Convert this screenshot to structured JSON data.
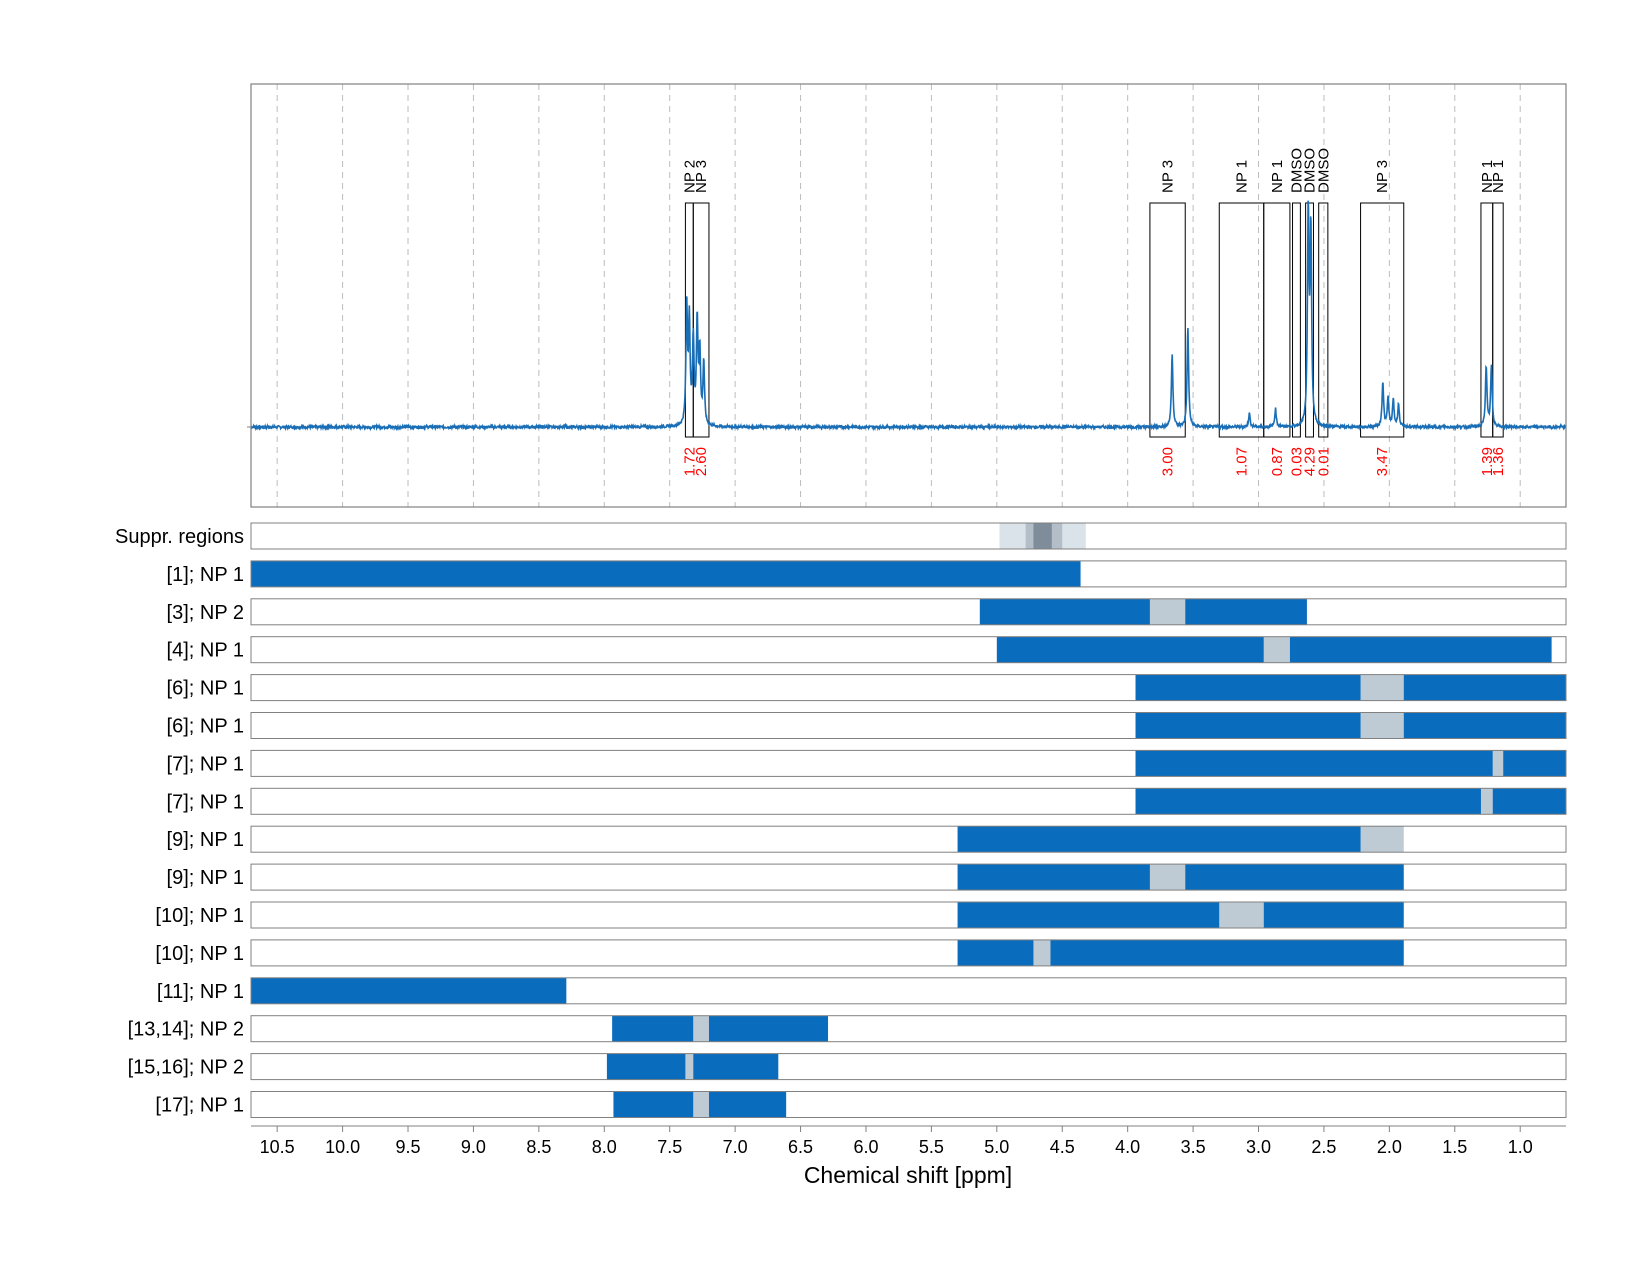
{
  "chart_data": {
    "type": "line",
    "title": "",
    "xlabel": "Chemical shift [ppm]",
    "ylabel": "",
    "xlim": [
      10.7,
      0.65
    ],
    "x_reversed": true,
    "grid": "vertical-dashed",
    "x_ticks": [
      10.5,
      10.0,
      9.5,
      9.0,
      8.5,
      8.0,
      7.5,
      7.0,
      6.5,
      6.0,
      5.5,
      5.0,
      4.5,
      4.0,
      3.5,
      3.0,
      2.5,
      2.0,
      1.5,
      1.0
    ],
    "x_tick_labels": [
      "10.5",
      "10.0",
      "9.5",
      "9.0",
      "8.5",
      "8.0",
      "7.5",
      "7.0",
      "6.5",
      "6.0",
      "5.5",
      "5.0",
      "4.5",
      "4.0",
      "3.5",
      "3.0",
      "2.5",
      "2.0",
      "1.5",
      "1.0"
    ],
    "spectrum": {
      "color": "#1a6eb5",
      "baseline": 0,
      "peaks": [
        {
          "x": 7.37,
          "y": 0.52
        },
        {
          "x": 7.35,
          "y": 0.45
        },
        {
          "x": 7.32,
          "y": 0.38
        },
        {
          "x": 7.29,
          "y": 0.46
        },
        {
          "x": 7.27,
          "y": 0.32
        },
        {
          "x": 7.24,
          "y": 0.28
        },
        {
          "x": 3.66,
          "y": 0.32
        },
        {
          "x": 3.54,
          "y": 0.44
        },
        {
          "x": 3.07,
          "y": 0.06
        },
        {
          "x": 2.87,
          "y": 0.08
        },
        {
          "x": 2.62,
          "y": 0.93
        },
        {
          "x": 2.6,
          "y": 0.85
        },
        {
          "x": 2.05,
          "y": 0.2
        },
        {
          "x": 2.01,
          "y": 0.13
        },
        {
          "x": 1.97,
          "y": 0.12
        },
        {
          "x": 1.93,
          "y": 0.1
        },
        {
          "x": 1.26,
          "y": 0.27
        },
        {
          "x": 1.22,
          "y": 0.27
        }
      ]
    },
    "integration_regions": [
      {
        "label": "NP 2",
        "x_from": 7.38,
        "x_to": 7.32,
        "integral": "1.72"
      },
      {
        "label": "NP 3",
        "x_from": 7.32,
        "x_to": 7.2,
        "integral": "2.60"
      },
      {
        "label": "NP 3",
        "x_from": 3.83,
        "x_to": 3.56,
        "integral": "3.00"
      },
      {
        "label": "NP 1",
        "x_from": 3.3,
        "x_to": 2.96,
        "integral": "1.07"
      },
      {
        "label": "NP 1",
        "x_from": 2.96,
        "x_to": 2.76,
        "integral": "0.87"
      },
      {
        "label": "DMSO",
        "x_from": 2.74,
        "x_to": 2.68,
        "integral": "0.03"
      },
      {
        "label": "DMSO",
        "x_from": 2.64,
        "x_to": 2.58,
        "integral": "4.29"
      },
      {
        "label": "DMSO",
        "x_from": 2.54,
        "x_to": 2.47,
        "integral": "0.01"
      },
      {
        "label": "NP 3",
        "x_from": 2.22,
        "x_to": 1.89,
        "integral": "3.47"
      },
      {
        "label": "NP 1",
        "x_from": 1.3,
        "x_to": 1.21,
        "integral": "1.39"
      },
      {
        "label": "NP 1",
        "x_from": 1.21,
        "x_to": 1.13,
        "integral": "1.36"
      }
    ],
    "suppressed_regions": {
      "label": "Suppr. regions",
      "segments": [
        {
          "x_from": 4.98,
          "x_to": 4.32,
          "level": 1
        },
        {
          "x_from": 4.78,
          "x_to": 4.5,
          "level": 2
        },
        {
          "x_from": 4.72,
          "x_to": 4.58,
          "level": 3
        }
      ]
    },
    "series_rows": [
      {
        "label": "[1]; NP 1",
        "segments": [
          [
            10.7,
            4.36
          ]
        ],
        "gaps": []
      },
      {
        "label": "[3]; NP 2",
        "segments": [
          [
            5.13,
            3.83
          ],
          [
            3.56,
            2.63
          ]
        ],
        "gaps": [
          [
            3.83,
            3.56
          ]
        ]
      },
      {
        "label": "[4]; NP 1",
        "segments": [
          [
            5.0,
            2.96
          ],
          [
            2.76,
            0.76
          ]
        ],
        "gaps": [
          [
            2.96,
            2.76
          ]
        ]
      },
      {
        "label": "[6]; NP 1",
        "segments": [
          [
            3.94,
            2.22
          ],
          [
            1.89,
            0.65
          ]
        ],
        "gaps": [
          [
            2.22,
            1.89
          ]
        ]
      },
      {
        "label": "[6]; NP 1",
        "segments": [
          [
            3.94,
            2.22
          ],
          [
            1.89,
            0.65
          ]
        ],
        "gaps": [
          [
            2.22,
            1.89
          ]
        ]
      },
      {
        "label": "[7]; NP 1",
        "segments": [
          [
            3.94,
            1.21
          ],
          [
            1.13,
            0.65
          ]
        ],
        "gaps": [
          [
            1.21,
            1.13
          ]
        ]
      },
      {
        "label": "[7]; NP 1",
        "segments": [
          [
            3.94,
            1.3
          ],
          [
            1.21,
            0.65
          ]
        ],
        "gaps": [
          [
            1.3,
            1.21
          ]
        ]
      },
      {
        "label": "[9]; NP 1",
        "segments": [
          [
            5.3,
            2.22
          ]
        ],
        "gaps": [
          [
            2.22,
            1.89
          ]
        ]
      },
      {
        "label": "[9]; NP 1",
        "segments": [
          [
            5.3,
            3.83
          ],
          [
            3.56,
            1.89
          ]
        ],
        "gaps": [
          [
            3.83,
            3.56
          ]
        ]
      },
      {
        "label": "[10]; NP 1",
        "segments": [
          [
            5.3,
            3.3
          ],
          [
            2.96,
            1.89
          ]
        ],
        "gaps": [
          [
            3.3,
            2.96
          ]
        ]
      },
      {
        "label": "[10]; NP 1",
        "segments": [
          [
            5.3,
            4.72
          ],
          [
            4.59,
            1.89
          ]
        ],
        "gaps": [
          [
            4.72,
            4.59
          ]
        ]
      },
      {
        "label": "[11]; NP 1",
        "segments": [
          [
            10.7,
            8.29
          ]
        ],
        "gaps": []
      },
      {
        "label": "[13,14]; NP 2",
        "segments": [
          [
            7.94,
            7.32
          ],
          [
            7.2,
            6.29
          ]
        ],
        "gaps": [
          [
            7.32,
            7.2
          ]
        ]
      },
      {
        "label": "[15,16]; NP 2",
        "segments": [
          [
            7.98,
            7.38
          ],
          [
            7.32,
            6.67
          ]
        ],
        "gaps": [
          [
            7.38,
            7.32
          ]
        ]
      },
      {
        "label": "[17]; NP 1",
        "segments": [
          [
            7.93,
            7.32
          ],
          [
            7.2,
            6.61
          ]
        ],
        "gaps": [
          [
            7.32,
            7.2
          ]
        ]
      }
    ],
    "colors": {
      "bar": "#0a6cbd",
      "gap": "#bfcbd4",
      "suppr_1": "#dbe3ea",
      "suppr_2": "#b4bec8",
      "suppr_3": "#7f8c99",
      "integral": "#ff0000",
      "grid": "#bdbdbd",
      "frame": "#808080"
    }
  }
}
